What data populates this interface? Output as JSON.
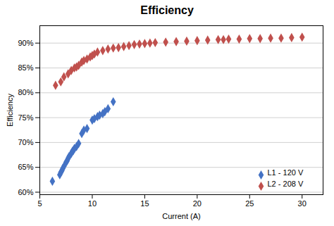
{
  "chart_data": {
    "type": "scatter",
    "title": "Efficiency",
    "xlabel": "Current (A)",
    "ylabel": "Efficiency",
    "series": [
      {
        "name": "L1 - 120 V",
        "color": "#4472c4",
        "marker": "diamond",
        "x": [
          6.2,
          6.9,
          7.0,
          7.1,
          7.2,
          7.3,
          7.5,
          7.6,
          7.7,
          7.8,
          8.0,
          8.1,
          8.2,
          8.3,
          8.5,
          8.7,
          9.0,
          9.2,
          9.5,
          10.0,
          10.2,
          10.5,
          10.7,
          11.0,
          11.2,
          11.5,
          12.0
        ],
        "values": [
          0.622,
          0.635,
          0.64,
          0.643,
          0.648,
          0.652,
          0.66,
          0.663,
          0.668,
          0.672,
          0.678,
          0.682,
          0.684,
          0.688,
          0.692,
          0.698,
          0.718,
          0.725,
          0.728,
          0.745,
          0.748,
          0.752,
          0.755,
          0.758,
          0.762,
          0.768,
          0.782
        ]
      },
      {
        "name": "L2 - 208 V",
        "color": "#c0504d",
        "marker": "diamond",
        "x": [
          6.5,
          7.0,
          7.3,
          7.7,
          8.0,
          8.3,
          8.5,
          8.7,
          9.0,
          9.2,
          9.5,
          9.8,
          10.0,
          10.2,
          10.5,
          11.0,
          11.5,
          12.0,
          12.5,
          13.0,
          13.5,
          14.0,
          14.5,
          15.0,
          15.5,
          16.0,
          17.0,
          18.0,
          19.0,
          20.0,
          21.0,
          22.0,
          22.5,
          23.0,
          24.0,
          25.0,
          26.0,
          27.0,
          28.0,
          29.0,
          30.0
        ],
        "values": [
          0.815,
          0.822,
          0.832,
          0.838,
          0.845,
          0.85,
          0.852,
          0.855,
          0.862,
          0.865,
          0.868,
          0.872,
          0.875,
          0.878,
          0.882,
          0.885,
          0.888,
          0.89,
          0.891,
          0.893,
          0.895,
          0.897,
          0.898,
          0.899,
          0.9,
          0.901,
          0.902,
          0.903,
          0.904,
          0.905,
          0.906,
          0.907,
          0.907,
          0.908,
          0.908,
          0.909,
          0.909,
          0.91,
          0.91,
          0.911,
          0.912
        ]
      }
    ],
    "xlim": [
      5,
      32
    ],
    "ylim": [
      0.595,
      0.935
    ],
    "xticks": [
      5,
      10,
      15,
      20,
      25,
      30
    ],
    "yticks": [
      {
        "value": 0.6,
        "label": "60%"
      },
      {
        "value": 0.65,
        "label": "65%"
      },
      {
        "value": 0.7,
        "label": "70%"
      },
      {
        "value": 0.75,
        "label": "75%"
      },
      {
        "value": 0.8,
        "label": "80%"
      },
      {
        "value": 0.85,
        "label": "85%"
      },
      {
        "value": 0.9,
        "label": "90%"
      }
    ],
    "grid": true,
    "legend": "lower right"
  }
}
